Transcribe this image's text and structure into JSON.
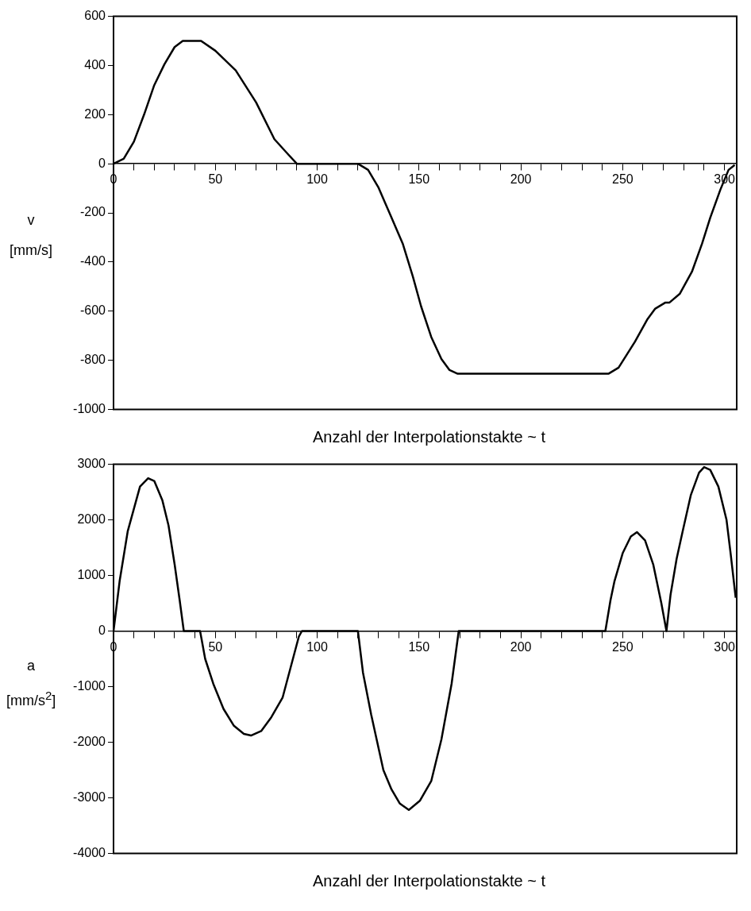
{
  "chart_data": [
    {
      "type": "line",
      "xlabel": "Anzahl der Interpolationstakte ~ t",
      "ylabel": "v [mm/s]",
      "xlim": [
        0,
        306
      ],
      "ylim": [
        -1000,
        600
      ],
      "xticks": [
        0,
        {
          "value": 10,
          "label": null
        },
        {
          "value": 20,
          "label": null
        },
        {
          "value": 30,
          "label": null
        },
        {
          "value": 40,
          "label": null
        },
        50,
        {
          "value": 60,
          "label": null
        },
        {
          "value": 70,
          "label": null
        },
        {
          "value": 80,
          "label": null
        },
        {
          "value": 90,
          "label": null
        },
        100,
        {
          "value": 110,
          "label": null
        },
        {
          "value": 120,
          "label": null
        },
        {
          "value": 130,
          "label": null
        },
        {
          "value": 140,
          "label": null
        },
        150,
        {
          "value": 160,
          "label": null
        },
        {
          "value": 170,
          "label": null
        },
        {
          "value": 180,
          "label": null
        },
        {
          "value": 190,
          "label": null
        },
        200,
        {
          "value": 210,
          "label": null
        },
        {
          "value": 220,
          "label": null
        },
        {
          "value": 230,
          "label": null
        },
        {
          "value": 240,
          "label": null
        },
        250,
        {
          "value": 260,
          "label": null
        },
        {
          "value": 270,
          "label": null
        },
        {
          "value": 280,
          "label": null
        },
        {
          "value": 290,
          "label": null
        },
        300
      ],
      "yticks": [
        -1000,
        -800,
        -600,
        -400,
        -200,
        0,
        200,
        400,
        600
      ],
      "marker": "none",
      "series": [
        {
          "color": "#000000",
          "x": [
            0,
            5,
            10,
            15,
            20,
            25,
            30,
            34,
            43,
            50,
            60,
            70,
            79,
            85,
            90,
            120,
            125,
            130,
            136,
            142,
            147,
            151,
            156,
            161,
            165,
            169,
            243,
            248,
            256,
            262,
            266,
            271,
            273,
            278,
            284,
            289,
            293,
            298,
            302,
            305
          ],
          "values": [
            0,
            20,
            90,
            200,
            320,
            405,
            475,
            500,
            500,
            460,
            380,
            250,
            100,
            45,
            0,
            0,
            -25,
            -95,
            -210,
            -325,
            -460,
            -580,
            -705,
            -795,
            -840,
            -855,
            -855,
            -830,
            -725,
            -635,
            -590,
            -565,
            -565,
            -530,
            -440,
            -325,
            -220,
            -105,
            -25,
            -5
          ]
        }
      ]
    },
    {
      "type": "line",
      "xlabel": "Anzahl der Interpolationstakte ~ t",
      "ylabel": "a [mm/s$^{2}$]",
      "xlim": [
        0,
        306
      ],
      "ylim": [
        -4000,
        3000
      ],
      "xticks": [
        0,
        {
          "value": 10,
          "label": null
        },
        {
          "value": 20,
          "label": null
        },
        {
          "value": 30,
          "label": null
        },
        {
          "value": 40,
          "label": null
        },
        50,
        {
          "value": 60,
          "label": null
        },
        {
          "value": 70,
          "label": null
        },
        {
          "value": 80,
          "label": null
        },
        {
          "value": 90,
          "label": null
        },
        100,
        {
          "value": 110,
          "label": null
        },
        {
          "value": 120,
          "label": null
        },
        {
          "value": 130,
          "label": null
        },
        {
          "value": 140,
          "label": null
        },
        150,
        {
          "value": 160,
          "label": null
        },
        {
          "value": 170,
          "label": null
        },
        {
          "value": 180,
          "label": null
        },
        {
          "value": 190,
          "label": null
        },
        200,
        {
          "value": 210,
          "label": null
        },
        {
          "value": 220,
          "label": null
        },
        {
          "value": 230,
          "label": null
        },
        {
          "value": 240,
          "label": null
        },
        250,
        {
          "value": 260,
          "label": null
        },
        {
          "value": 270,
          "label": null
        },
        {
          "value": 280,
          "label": null
        },
        {
          "value": 290,
          "label": null
        },
        300
      ],
      "yticks": [
        -4000,
        -3000,
        -2000,
        -1000,
        0,
        1000,
        2000,
        3000
      ],
      "marker": "none",
      "series": [
        {
          "color": "#000000",
          "x": [
            0,
            2,
            3,
            7,
            10,
            13,
            17,
            20,
            24,
            27,
            30,
            32.5,
            34.5,
            42.5,
            45,
            49,
            54,
            59,
            64,
            67.5,
            72.5,
            77.5,
            83,
            87,
            91,
            92.5,
            120,
            122.5,
            126.5,
            132.5,
            136.5,
            140.5,
            145,
            150.5,
            156,
            161,
            166,
            169.5,
            241.5,
            244,
            246,
            250,
            254,
            257,
            261,
            265,
            269,
            271.5,
            273.5,
            276.5,
            279.5,
            283.5,
            287.5,
            290,
            293,
            297,
            301,
            303,
            305.5
          ],
          "values": [
            0,
            600,
            900,
            1800,
            2200,
            2600,
            2750,
            2700,
            2350,
            1900,
            1200,
            550,
            0,
            0,
            -500,
            -950,
            -1400,
            -1700,
            -1850,
            -1880,
            -1800,
            -1550,
            -1200,
            -650,
            -100,
            0,
            0,
            -750,
            -1500,
            -2500,
            -2850,
            -3100,
            -3220,
            -3050,
            -2700,
            -1950,
            -950,
            0,
            0,
            550,
            900,
            1400,
            1700,
            1780,
            1630,
            1200,
            500,
            0,
            650,
            1300,
            1800,
            2450,
            2850,
            2950,
            2900,
            2600,
            2000,
            1400,
            600
          ]
        }
      ]
    }
  ]
}
